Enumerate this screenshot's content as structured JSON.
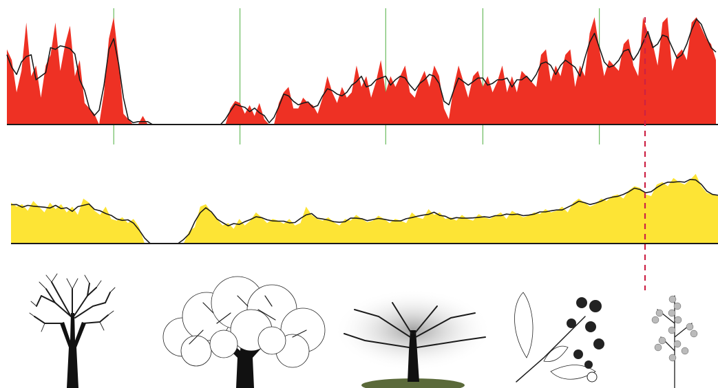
{
  "chart_data": [
    {
      "type": "area",
      "title": "",
      "ylim": [
        0,
        100
      ],
      "style": {
        "fill": "#ee3124",
        "smooth_line": "#1a1a1a"
      },
      "values": [
        70,
        60,
        30,
        50,
        95,
        45,
        55,
        25,
        55,
        65,
        95,
        50,
        75,
        92,
        45,
        60,
        20,
        15,
        10,
        0,
        30,
        80,
        100,
        60,
        10,
        5,
        0,
        0,
        8,
        0,
        0,
        0,
        0,
        0,
        0,
        0,
        0,
        0,
        0,
        0,
        0,
        0,
        0,
        0,
        0,
        0,
        15,
        22,
        20,
        10,
        18,
        8,
        20,
        5,
        0,
        0,
        20,
        30,
        35,
        15,
        15,
        25,
        20,
        18,
        10,
        25,
        45,
        30,
        20,
        35,
        25,
        30,
        55,
        35,
        45,
        25,
        40,
        60,
        30,
        45,
        35,
        45,
        55,
        30,
        25,
        40,
        50,
        35,
        55,
        45,
        15,
        5,
        35,
        55,
        40,
        25,
        45,
        50,
        35,
        45,
        30,
        40,
        55,
        30,
        45,
        30,
        50,
        45,
        40,
        35,
        65,
        70,
        40,
        55,
        45,
        65,
        70,
        35,
        55,
        45,
        85,
        100,
        70,
        45,
        60,
        55,
        50,
        75,
        80,
        55,
        45,
        100,
        85,
        75,
        55,
        95,
        100,
        50,
        65,
        70,
        60,
        95,
        110,
        90,
        80,
        75,
        60
      ],
      "vertical_markers": [
        22,
        48,
        78,
        98,
        122,
        168,
        230,
        312
      ]
    },
    {
      "type": "area",
      "title": "",
      "ylim": [
        0,
        100
      ],
      "style": {
        "fill": "#fde435",
        "smooth_line": "#1a1a1a"
      },
      "values": [
        50,
        45,
        48,
        40,
        52,
        45,
        38,
        50,
        42,
        48,
        38,
        45,
        35,
        55,
        50,
        40,
        35,
        45,
        30,
        28,
        32,
        25,
        30,
        20,
        0,
        0,
        0,
        0,
        0,
        0,
        0,
        0,
        15,
        20,
        45,
        48,
        38,
        30,
        22,
        25,
        18,
        30,
        22,
        28,
        38,
        32,
        25,
        30,
        28,
        24,
        30,
        22,
        25,
        45,
        35,
        30,
        28,
        32,
        26,
        22,
        30,
        28,
        35,
        30,
        26,
        28,
        34,
        30,
        25,
        30,
        28,
        25,
        38,
        32,
        30,
        42,
        35,
        38,
        30,
        32,
        28,
        35,
        30,
        28,
        36,
        32,
        30,
        34,
        38,
        30,
        40,
        36,
        32,
        34,
        38,
        36,
        42,
        38,
        40,
        45,
        38,
        50,
        55,
        50,
        45,
        48,
        55,
        52,
        58,
        60,
        55,
        65,
        70,
        68,
        60,
        58,
        72,
        75,
        70,
        80,
        75,
        72,
        78,
        85,
        70,
        62,
        60,
        58
      ],
      "divider_position": 0.9
    }
  ],
  "illustrations": [
    {
      "icon": "bare-tree-icon"
    },
    {
      "icon": "leafy-tree-icon"
    },
    {
      "icon": "winter-tree-photo-icon"
    },
    {
      "icon": "berry-branch-icon"
    },
    {
      "icon": "heather-sprig-icon"
    }
  ]
}
